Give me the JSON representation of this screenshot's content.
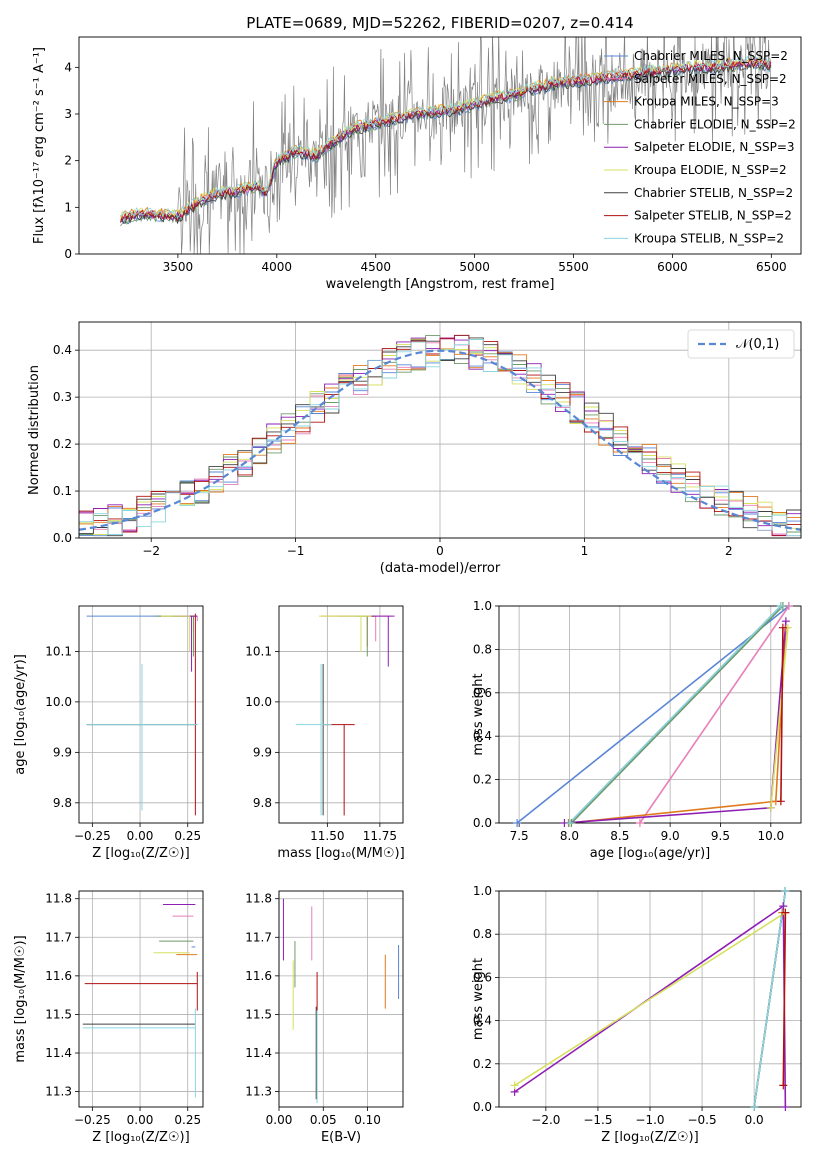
{
  "colors": {
    "chabrier_miles": "#5a86d4",
    "salpeter_miles": "#e87fb8",
    "kroupa_miles": "#e07a1f",
    "chabrier_elodie": "#6f9a68",
    "salpeter_elodie": "#8f1fb4",
    "kroupa_elodie": "#d6e060",
    "chabrier_stelib": "#404040",
    "salpeter_stelib": "#b01010",
    "kroupa_stelib": "#8ad6e0",
    "normal_curve": "#5a86d4",
    "data": "#808080"
  },
  "chart_data": [
    {
      "id": "spectrum",
      "type": "line",
      "title": "PLATE=0689, MJD=52262, FIBERID=0207, z=0.414",
      "xlabel": "wavelength [Angstrom, rest frame]",
      "ylabel": "Flux [fλ10⁻¹⁷ erg cm⁻² s⁻¹ A⁻¹]",
      "xlim": [
        3000,
        6650
      ],
      "ylim": [
        0,
        4.65
      ],
      "xticks": [
        "3500",
        "4000",
        "4500",
        "5000",
        "5500",
        "6000",
        "6500"
      ],
      "yticks": [
        "0",
        "1",
        "2",
        "3",
        "4"
      ],
      "grid": false,
      "legend_position": "top-right",
      "legend": [
        "Chabrier MILES, N_SSP=2",
        "Salpeter MILES, N_SSP=2",
        "Kroupa MILES, N_SSP=3",
        "Chabrier ELODIE, N_SSP=2",
        "Salpeter ELODIE, N_SSP=3",
        "Kroupa ELODIE, N_SSP=2",
        "Chabrier STELIB, N_SSP=2",
        "Salpeter STELIB, N_SSP=2",
        "Kroupa STELIB, N_SSP=2"
      ],
      "continuum": {
        "x": [
          3210,
          3300,
          3400,
          3500,
          3600,
          3700,
          3800,
          3900,
          3950,
          4000,
          4100,
          4200,
          4300,
          4400,
          4500,
          4600,
          4700,
          4800,
          4900,
          5000,
          5100,
          5200,
          5300,
          5400,
          5500,
          5600,
          5700,
          5800,
          5900,
          6000,
          6100,
          6200,
          6300,
          6400,
          6500
        ],
        "y": [
          0.75,
          0.85,
          0.85,
          0.8,
          1.1,
          1.3,
          1.35,
          1.45,
          1.3,
          2.0,
          2.2,
          2.1,
          2.45,
          2.7,
          2.8,
          2.9,
          3.0,
          3.05,
          3.1,
          3.2,
          3.35,
          3.4,
          3.55,
          3.65,
          3.7,
          3.75,
          3.8,
          3.85,
          3.9,
          3.95,
          4.0,
          4.0,
          4.05,
          4.1,
          4.05
        ]
      }
    },
    {
      "id": "residuals",
      "type": "step",
      "xlabel": "(data-model)/error",
      "ylabel": "Normed distribution",
      "xlim": [
        -2.5,
        2.5
      ],
      "ylim": [
        0,
        0.46
      ],
      "xticks": [
        "−2",
        "−1",
        "0",
        "1",
        "2"
      ],
      "yticks": [
        "0.0",
        "0.1",
        "0.2",
        "0.3",
        "0.4"
      ],
      "grid": true,
      "legend_position": "top-right",
      "normal_label": "𝒩(0,1)"
    },
    {
      "id": "age_vs_Z",
      "type": "errorbar",
      "xlabel": "Z [log₁₀(Z/Z☉)]",
      "ylabel": "age  [log₁₀(age/yr)]",
      "xlim": [
        -0.32,
        0.33
      ],
      "ylim": [
        9.76,
        10.19
      ],
      "xticks": [
        "−0.25",
        "0.00",
        "0.25"
      ],
      "yticks": [
        "9.8",
        "9.9",
        "10.0",
        "10.1"
      ],
      "grid": true,
      "points": [
        {
          "model": "chabrier_miles",
          "x": 0.01,
          "xerr": [
            0.29,
            0.29
          ],
          "y": 10.17,
          "yerr": [
            0.0,
            0.0
          ]
        },
        {
          "model": "salpeter_miles",
          "x": 0.3,
          "xerr": [
            0.04,
            0.0
          ],
          "y": 10.17,
          "yerr": [
            0.01,
            0.0
          ]
        },
        {
          "model": "kroupa_miles",
          "x": 0.28,
          "xerr": [
            0.17,
            0.0
          ],
          "y": 10.17,
          "yerr": [
            0.03,
            0.0
          ]
        },
        {
          "model": "chabrier_elodie",
          "x": 0.28,
          "xerr": [
            0.2,
            0.01
          ],
          "y": 10.17,
          "yerr": [
            0.08,
            0.0
          ]
        },
        {
          "model": "salpeter_elodie",
          "x": 0.27,
          "xerr": [
            0.1,
            0.03
          ],
          "y": 10.17,
          "yerr": [
            0.11,
            0.0
          ]
        },
        {
          "model": "kroupa_elodie",
          "x": 0.26,
          "xerr": [
            0.15,
            0.0
          ],
          "y": 10.17,
          "yerr": [
            0.07,
            0.0
          ]
        },
        {
          "model": "chabrier_stelib",
          "x": 0.01,
          "xerr": [
            0.29,
            0.29
          ],
          "y": 9.955,
          "yerr": [
            0.0,
            0.0
          ]
        },
        {
          "model": "salpeter_stelib",
          "x": 0.29,
          "xerr": [
            0.0,
            0.0
          ],
          "y": 9.955,
          "yerr": [
            0.18,
            0.22
          ]
        },
        {
          "model": "kroupa_stelib",
          "x": 0.01,
          "xerr": [
            0.29,
            0.29
          ],
          "y": 9.955,
          "yerr": [
            0.17,
            0.12
          ]
        }
      ]
    },
    {
      "id": "age_vs_mass",
      "type": "errorbar",
      "xlabel": "mass [log₁₀(M/M☉)]",
      "ylabel": "",
      "xlim": [
        11.27,
        11.86
      ],
      "ylim": [
        9.76,
        10.19
      ],
      "xticks": [
        "11.50",
        "11.75"
      ],
      "yticks": [
        "9.8",
        "9.9",
        "10.0",
        "10.1"
      ],
      "grid": true,
      "points": [
        {
          "model": "chabrier_miles",
          "x": 11.63,
          "xerr": [
            0.08,
            0.06
          ],
          "y": 10.17,
          "yerr": [
            0.0,
            0.0
          ]
        },
        {
          "model": "salpeter_miles",
          "x": 11.73,
          "xerr": [
            0.06,
            0.07
          ],
          "y": 10.17,
          "yerr": [
            0.05,
            0.0
          ]
        },
        {
          "model": "kroupa_miles",
          "x": 11.69,
          "xerr": [
            0.22,
            0.04
          ],
          "y": 10.17,
          "yerr": [
            0.06,
            0.0
          ]
        },
        {
          "model": "chabrier_elodie",
          "x": 11.69,
          "xerr": [
            0.05,
            0.04
          ],
          "y": 10.17,
          "yerr": [
            0.08,
            0.0
          ]
        },
        {
          "model": "salpeter_elodie",
          "x": 11.79,
          "xerr": [
            0.08,
            0.03
          ],
          "y": 10.17,
          "yerr": [
            0.1,
            0.0
          ]
        },
        {
          "model": "kroupa_elodie",
          "x": 11.66,
          "xerr": [
            0.2,
            0.05
          ],
          "y": 10.17,
          "yerr": [
            0.07,
            0.0
          ]
        },
        {
          "model": "chabrier_stelib",
          "x": 11.48,
          "xerr": [
            0.0,
            0.0
          ],
          "y": 9.955,
          "yerr": [
            0.18,
            0.12
          ]
        },
        {
          "model": "salpeter_stelib",
          "x": 11.58,
          "xerr": [
            0.1,
            0.05
          ],
          "y": 9.955,
          "yerr": [
            0.18,
            0.0
          ]
        },
        {
          "model": "kroupa_stelib",
          "x": 11.47,
          "xerr": [
            0.12,
            0.05
          ],
          "y": 9.955,
          "yerr": [
            0.18,
            0.12
          ]
        }
      ]
    },
    {
      "id": "weight_vs_age",
      "type": "line",
      "xlabel": "age  [log₁₀(age/yr)]",
      "ylabel": "mass weight",
      "xlim": [
        7.3,
        10.3
      ],
      "ylim": [
        0,
        1.0
      ],
      "xticks": [
        "7.5",
        "8.0",
        "8.5",
        "9.0",
        "9.5",
        "10.0"
      ],
      "yticks": [
        "0.0",
        "0.2",
        "0.4",
        "0.6",
        "0.8",
        "1.0"
      ],
      "grid": true,
      "series": [
        {
          "model": "chabrier_miles",
          "x": [
            7.48,
            10.18
          ],
          "y": [
            0.0,
            1.0
          ]
        },
        {
          "model": "salpeter_miles",
          "x": [
            8.7,
            10.18
          ],
          "y": [
            0.0,
            1.0
          ]
        },
        {
          "model": "kroupa_miles",
          "x": [
            7.99,
            10.05,
            10.15
          ],
          "y": [
            0.0,
            0.1,
            0.9
          ]
        },
        {
          "model": "chabrier_elodie",
          "x": [
            8.02,
            10.12
          ],
          "y": [
            0.0,
            1.0
          ]
        },
        {
          "model": "salpeter_elodie",
          "x": [
            7.95,
            10.0,
            10.15
          ],
          "y": [
            0.0,
            0.07,
            0.93
          ]
        },
        {
          "model": "kroupa_elodie",
          "x": [
            10.0,
            10.17
          ],
          "y": [
            0.07,
            0.9
          ]
        },
        {
          "model": "chabrier_stelib",
          "x": [
            8.0,
            10.1
          ],
          "y": [
            0.0,
            1.0
          ]
        },
        {
          "model": "salpeter_stelib",
          "x": [
            10.1,
            10.12
          ],
          "y": [
            0.1,
            0.9
          ]
        },
        {
          "model": "kroupa_stelib",
          "x": [
            8.0,
            10.1
          ],
          "y": [
            0.0,
            1.0
          ]
        }
      ]
    },
    {
      "id": "mass_vs_Z",
      "type": "errorbar",
      "xlabel": "Z [log₁₀(Z/Z☉)]",
      "ylabel": "mass [log₁₀(M/M☉)]",
      "xlim": [
        -0.32,
        0.33
      ],
      "ylim": [
        11.26,
        11.82
      ],
      "xticks": [
        "−0.25",
        "0.00",
        "0.25"
      ],
      "yticks": [
        "11.3",
        "11.4",
        "11.5",
        "11.6",
        "11.7",
        "11.8"
      ],
      "grid": true,
      "points": [
        {
          "model": "chabrier_miles",
          "x": 0.27,
          "xerr": [
            0.0,
            0.02
          ],
          "y": 11.675,
          "yerr": [
            0.0,
            0.0
          ]
        },
        {
          "model": "salpeter_miles",
          "x": 0.28,
          "xerr": [
            0.11,
            0.0
          ],
          "y": 11.755,
          "yerr": [
            0.0,
            0.0
          ]
        },
        {
          "model": "kroupa_miles",
          "x": 0.28,
          "xerr": [
            0.09,
            0.02
          ],
          "y": 11.655,
          "yerr": [
            0.0,
            0.0
          ]
        },
        {
          "model": "chabrier_elodie",
          "x": 0.28,
          "xerr": [
            0.18,
            0.0
          ],
          "y": 11.69,
          "yerr": [
            0.0,
            0.0
          ]
        },
        {
          "model": "salpeter_elodie",
          "x": 0.29,
          "xerr": [
            0.17,
            0.0
          ],
          "y": 11.785,
          "yerr": [
            0.0,
            0.0
          ]
        },
        {
          "model": "kroupa_elodie",
          "x": 0.26,
          "xerr": [
            0.19,
            0.0
          ],
          "y": 11.66,
          "yerr": [
            0.0,
            0.0
          ]
        },
        {
          "model": "chabrier_stelib",
          "x": 0.29,
          "xerr": [
            0.59,
            0.0
          ],
          "y": 11.475,
          "yerr": [
            0.0,
            0.0
          ]
        },
        {
          "model": "salpeter_stelib",
          "x": 0.3,
          "xerr": [
            0.59,
            0.0
          ],
          "y": 11.58,
          "yerr": [
            0.07,
            0.03
          ]
        },
        {
          "model": "kroupa_stelib",
          "x": 0.29,
          "xerr": [
            0.59,
            0.0
          ],
          "y": 11.465,
          "yerr": [
            0.18,
            0.05
          ]
        }
      ]
    },
    {
      "id": "mass_vs_ebv",
      "type": "errorbar",
      "xlabel": "E(B-V)",
      "ylabel": "",
      "xlim": [
        0.0,
        0.14
      ],
      "ylim": [
        11.26,
        11.82
      ],
      "xticks": [
        "0.00",
        "0.05",
        "0.10"
      ],
      "yticks": [
        "11.3",
        "11.4",
        "11.5",
        "11.6",
        "11.7",
        "11.8"
      ],
      "grid": true,
      "points": [
        {
          "model": "chabrier_miles",
          "x": 0.135,
          "xerr": [
            0.0,
            0.0
          ],
          "y": 11.61,
          "yerr": [
            0.07,
            0.07
          ]
        },
        {
          "model": "salpeter_miles",
          "x": 0.037,
          "xerr": [
            0.0,
            0.0
          ],
          "y": 11.71,
          "yerr": [
            0.07,
            0.07
          ]
        },
        {
          "model": "kroupa_miles",
          "x": 0.12,
          "xerr": [
            0.0,
            0.0
          ],
          "y": 11.585,
          "yerr": [
            0.07,
            0.07
          ]
        },
        {
          "model": "chabrier_elodie",
          "x": 0.018,
          "xerr": [
            0.0,
            0.0
          ],
          "y": 11.63,
          "yerr": [
            0.06,
            0.06
          ]
        },
        {
          "model": "salpeter_elodie",
          "x": 0.005,
          "xerr": [
            0.0,
            0.0
          ],
          "y": 11.72,
          "yerr": [
            0.08,
            0.08
          ]
        },
        {
          "model": "kroupa_elodie",
          "x": 0.016,
          "xerr": [
            0.0,
            0.0
          ],
          "y": 11.55,
          "yerr": [
            0.09,
            0.09
          ]
        },
        {
          "model": "chabrier_stelib",
          "x": 0.042,
          "xerr": [
            0.0,
            0.0
          ],
          "y": 11.4,
          "yerr": [
            0.12,
            0.12
          ]
        },
        {
          "model": "salpeter_stelib",
          "x": 0.043,
          "xerr": [
            0.0,
            0.0
          ],
          "y": 11.56,
          "yerr": [
            0.05,
            0.05
          ]
        },
        {
          "model": "kroupa_stelib",
          "x": 0.043,
          "xerr": [
            0.0,
            0.0
          ],
          "y": 11.39,
          "yerr": [
            0.12,
            0.12
          ]
        }
      ]
    },
    {
      "id": "weight_vs_Z",
      "type": "line",
      "xlabel": "Z [log₁₀(Z/Z☉)]",
      "ylabel": "mass weight",
      "xlim": [
        -2.45,
        0.45
      ],
      "ylim": [
        0,
        1.0
      ],
      "xticks": [
        "−2.0",
        "−1.5",
        "−1.0",
        "−0.5",
        "0.0"
      ],
      "yticks": [
        "0.0",
        "0.2",
        "0.4",
        "0.6",
        "0.8",
        "1.0"
      ],
      "grid": true,
      "series": [
        {
          "model": "chabrier_miles",
          "x": [
            0.0,
            0.3
          ],
          "y": [
            0.0,
            1.0
          ]
        },
        {
          "model": "salpeter_miles",
          "x": [
            0.0,
            0.3
          ],
          "y": [
            0.0,
            1.0
          ]
        },
        {
          "model": "kroupa_miles",
          "x": [
            0.0,
            0.27
          ],
          "y": [
            0.0,
            0.9
          ]
        },
        {
          "model": "chabrier_elodie",
          "x": [
            0.0,
            0.3
          ],
          "y": [
            0.0,
            1.0
          ]
        },
        {
          "model": "salpeter_elodie",
          "x": [
            -2.3,
            0.28,
            0.3
          ],
          "y": [
            0.07,
            0.93,
            0.0
          ]
        },
        {
          "model": "kroupa_elodie",
          "x": [
            -2.3,
            0.3
          ],
          "y": [
            0.1,
            0.9
          ]
        },
        {
          "model": "chabrier_stelib",
          "x": [
            0.0,
            0.3
          ],
          "y": [
            0.0,
            1.0
          ]
        },
        {
          "model": "salpeter_stelib",
          "x": [
            0.28,
            0.3
          ],
          "y": [
            0.1,
            0.9
          ]
        },
        {
          "model": "kroupa_stelib",
          "x": [
            0.0,
            0.3
          ],
          "y": [
            0.0,
            1.0
          ]
        }
      ]
    }
  ]
}
